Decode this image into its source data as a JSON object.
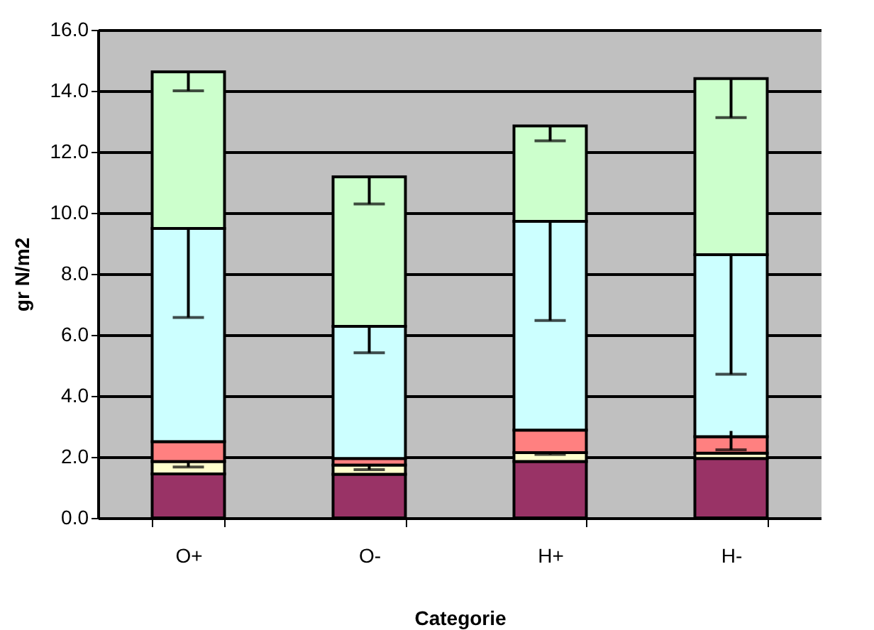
{
  "chart_data": {
    "type": "bar",
    "stacked": true,
    "xlabel": "Categorie",
    "ylabel": "gr N/m2",
    "categories": [
      "O+",
      "O-",
      "H+",
      "H-"
    ],
    "series": [
      {
        "color": "#993366",
        "values": [
          1.44,
          1.43,
          1.85,
          1.95
        ]
      },
      {
        "color": "#ffffcc",
        "values": [
          0.41,
          0.3,
          0.29,
          0.17
        ],
        "errors": [
          [
            1.67,
            1.85
          ],
          [
            1.58,
            1.73
          ],
          [
            2.08,
            2.14
          ],
          null
        ]
      },
      {
        "color": "#ff8080",
        "values": [
          0.65,
          0.22,
          0.74,
          0.54
        ],
        "errors": [
          null,
          null,
          null,
          [
            2.23,
            2.85
          ]
        ]
      },
      {
        "color": "#ccffff",
        "values": [
          6.99,
          4.33,
          6.84,
          5.97
        ],
        "errors": [
          [
            6.57,
            9.49
          ],
          [
            5.41,
            6.28
          ],
          [
            6.47,
            9.72
          ],
          [
            4.71,
            8.63
          ]
        ]
      },
      {
        "color": "#ccffcc",
        "values": [
          5.13,
          4.9,
          3.13,
          5.77
        ],
        "errors": [
          [
            14.0,
            14.62
          ],
          [
            10.29,
            11.18
          ],
          [
            12.36,
            12.85
          ],
          [
            13.12,
            14.4
          ]
        ]
      }
    ],
    "ylim": [
      0,
      16
    ],
    "yticks": [
      {
        "value": 0,
        "label": "0.0"
      },
      {
        "value": 2,
        "label": "2.0"
      },
      {
        "value": 4,
        "label": "4.0"
      },
      {
        "value": 6,
        "label": "6.0"
      },
      {
        "value": 8,
        "label": "8.0"
      },
      {
        "value": 10,
        "label": "10.0"
      },
      {
        "value": 12,
        "label": "12.0"
      },
      {
        "value": 14,
        "label": "14.0"
      },
      {
        "value": 16,
        "label": "16.0"
      }
    ],
    "grid": "y",
    "legend": false
  }
}
